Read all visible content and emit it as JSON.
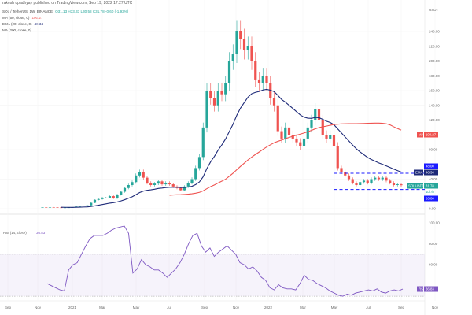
{
  "header": {
    "publisher": "rakesh upadhyay published on TradingView.com, Sep 19, 2022 17:27 UTC",
    "symbol": "SOL / TetherUS, 1W, BINANCE",
    "ohlc": "O31.13 H33.33 L30.58 C31.78 -0.60 (-1.93%)",
    "ma50_label": "MA (50, close, 0)",
    "ma50_value": "100.27",
    "ema20_label": "EMA (20, close, 0)",
    "ema20_value": "46.34",
    "ma200_label": "MA (200, close, 0)"
  },
  "colors": {
    "up": "#26a69a",
    "down": "#ef5350",
    "ema": "#1e2a78",
    "ma": "#ef5350",
    "rsi": "#7e57c2",
    "level": "#1a1aff"
  },
  "chart_data": [
    {
      "type": "candlestick",
      "currency": "USDT",
      "ylim": [
        0,
        250
      ],
      "y_ticks": [
        "240.00",
        "220.00",
        "200.00",
        "180.00",
        "160.00",
        "140.00",
        "120.00",
        "80.00",
        "40.00",
        "0.00"
      ],
      "x_ticks": [
        "Sep",
        "Nov",
        "2021",
        "Mar",
        "May",
        "Jul",
        "Sep",
        "Nov",
        "2022",
        "Mar",
        "May",
        "Jul",
        "Sep",
        "Nov"
      ],
      "closes": [
        2.0,
        1.9,
        2.1,
        1.8,
        1.6,
        1.5,
        1.5,
        1.6,
        1.8,
        3.0,
        3.5,
        3.8,
        4.5,
        8,
        12,
        13,
        15,
        15,
        17,
        14,
        19,
        23,
        28,
        32,
        36,
        45,
        50,
        42,
        35,
        32,
        34,
        37,
        33,
        35,
        33,
        30,
        28,
        25,
        30,
        35,
        40,
        55,
        70,
        110,
        160,
        150,
        140,
        160,
        155,
        170,
        200,
        210,
        240,
        230,
        215,
        220,
        200,
        175,
        170,
        180,
        170,
        150,
        140,
        105,
        95,
        110,
        100,
        95,
        90,
        85,
        95,
        110,
        120,
        135,
        120,
        100,
        95,
        100,
        85,
        55,
        50,
        45,
        40,
        35,
        32,
        36,
        38,
        35,
        40,
        42,
        40,
        42,
        38,
        35,
        32,
        33,
        31.78
      ],
      "levels": [
        {
          "label": "48.00",
          "value": 48
        },
        {
          "label": "26.00",
          "value": 26
        }
      ],
      "tags": {
        "ma": "MA",
        "ma_value": "100.27",
        "ema": "EMA",
        "ema_value": "46.34",
        "symbol": "SOLUSDT",
        "last": "31.78",
        "countdown": "1d 7h"
      }
    },
    {
      "type": "line",
      "title": "RSI (14, close)",
      "last_value": "36.83",
      "tag_label": "RSI",
      "ylim": [
        20,
        100
      ],
      "bands": [
        30,
        70
      ],
      "y_ticks": [
        "100.00",
        "80.00",
        "60.00"
      ],
      "values": [
        42,
        40,
        38,
        36,
        35,
        55,
        60,
        62,
        70,
        78,
        85,
        88,
        88,
        88,
        90,
        93,
        95,
        96,
        97,
        90,
        52,
        56,
        65,
        60,
        58,
        55,
        55,
        52,
        48,
        52,
        56,
        62,
        70,
        80,
        88,
        90,
        78,
        72,
        76,
        68,
        72,
        75,
        78,
        74,
        70,
        62,
        60,
        56,
        58,
        54,
        48,
        45,
        38,
        36,
        41,
        38,
        37,
        37,
        36,
        42,
        50,
        46,
        45,
        42,
        40,
        38,
        35,
        33,
        31,
        30,
        32,
        31,
        33,
        34,
        35,
        36,
        35,
        37,
        34,
        33,
        35,
        36,
        35,
        36.83
      ]
    }
  ]
}
